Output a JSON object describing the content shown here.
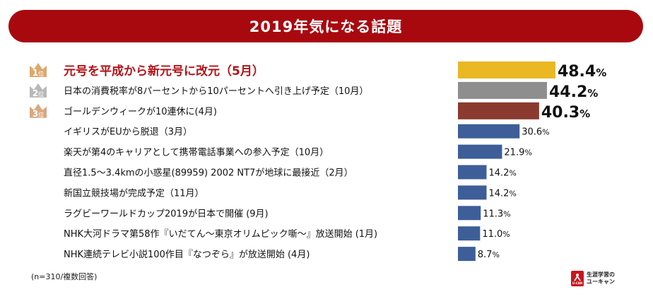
{
  "header": {
    "title": "2019年気になる話題"
  },
  "footnote": "(n=310/複数回答)",
  "logo": {
    "mark_text": "U-CAN",
    "line1": "生涯学習の",
    "line2": "ユーキャン"
  },
  "colors": {
    "title_bg": "#a8090f",
    "rank1": "#e9b823",
    "rank2": "#8e8e8e",
    "rank3": "#8b3a2f",
    "default_bar": "#3d5e98",
    "rank1_text": "#b1141a",
    "badge": "#dba86d"
  },
  "chart_data": {
    "type": "bar",
    "orientation": "horizontal",
    "unit": "%",
    "xlim": [
      0,
      60
    ],
    "categories": [
      "元号を平成から新元号に改元（5月）",
      "日本の消費税率が8パーセントから10パーセントへ引き上げ予定（10月）",
      "ゴールデンウィークが10連休に(4月)",
      "イギリスがEUから脱退（3月）",
      "楽天が第4のキャリアとして携帯電話事業への参入予定（10月）",
      "直径1.5〜3.4kmの小惑星(89959) 2002 NT7が地球に最接近（2月）",
      "新国立競技場が完成予定（11月）",
      "ラグビーワールドカップ2019が日本で開催 (9月)",
      "NHK大河ドラマ第58作『いだてん〜東京オリムピック噺〜』放送開始 (1月)",
      "NHK連続テレビ小説100作目『なつぞら』が放送開始 (4月)"
    ],
    "values": [
      48.4,
      44.2,
      40.3,
      30.6,
      21.9,
      14.2,
      14.2,
      11.3,
      11.0,
      8.7
    ],
    "value_labels": [
      "48.4",
      "44.2",
      "40.3",
      "30.6",
      "21.9",
      "14.2",
      "14.2",
      "11.3",
      "11.0",
      "8.7"
    ],
    "ranks": [
      {
        "number": "1",
        "suffix": "位"
      },
      {
        "number": "2",
        "suffix": "位"
      },
      {
        "number": "3",
        "suffix": "位"
      }
    ]
  }
}
